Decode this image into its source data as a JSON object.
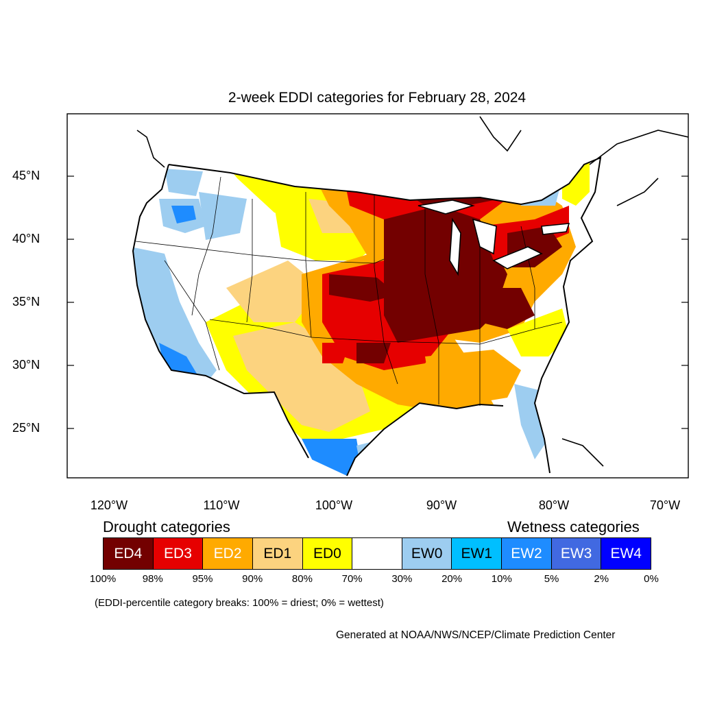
{
  "title": "2-week EDDI categories for February 28, 2024",
  "map": {
    "lat_labels": [
      "45°N",
      "40°N",
      "35°N",
      "30°N",
      "25°N"
    ],
    "lon_labels": [
      "120°W",
      "110°W",
      "100°W",
      "90°W",
      "80°W",
      "70°W"
    ]
  },
  "legend": {
    "drought_heading": "Drought categories",
    "wetness_heading": "Wetness categories",
    "categories": [
      {
        "label": "ED4",
        "color": "#730000",
        "text_color": "#ffffff"
      },
      {
        "label": "ED3",
        "color": "#e60000",
        "text_color": "#ffffff"
      },
      {
        "label": "ED2",
        "color": "#ffaa00",
        "text_color": "#ffffff"
      },
      {
        "label": "ED1",
        "color": "#fcd37f",
        "text_color": "#000000"
      },
      {
        "label": "ED0",
        "color": "#ffff00",
        "text_color": "#000000"
      },
      {
        "label": "",
        "color": "#ffffff",
        "text_color": "#000000"
      },
      {
        "label": "EW0",
        "color": "#9dcdf0",
        "text_color": "#000000"
      },
      {
        "label": "EW1",
        "color": "#00bfff",
        "text_color": "#000000"
      },
      {
        "label": "EW2",
        "color": "#1e8cff",
        "text_color": "#ffffff"
      },
      {
        "label": "EW3",
        "color": "#4169e1",
        "text_color": "#ffffff"
      },
      {
        "label": "EW4",
        "color": "#0000ff",
        "text_color": "#ffffff"
      }
    ],
    "breaks": [
      "100%",
      "98%",
      "95%",
      "90%",
      "80%",
      "70%",
      "30%",
      "20%",
      "10%",
      "5%",
      "2%",
      "0%"
    ]
  },
  "note": "(EDDI-percentile category breaks: 100% = driest; 0% = wettest)",
  "credit": "Generated at NOAA/NWS/NCEP/Climate Prediction Center"
}
